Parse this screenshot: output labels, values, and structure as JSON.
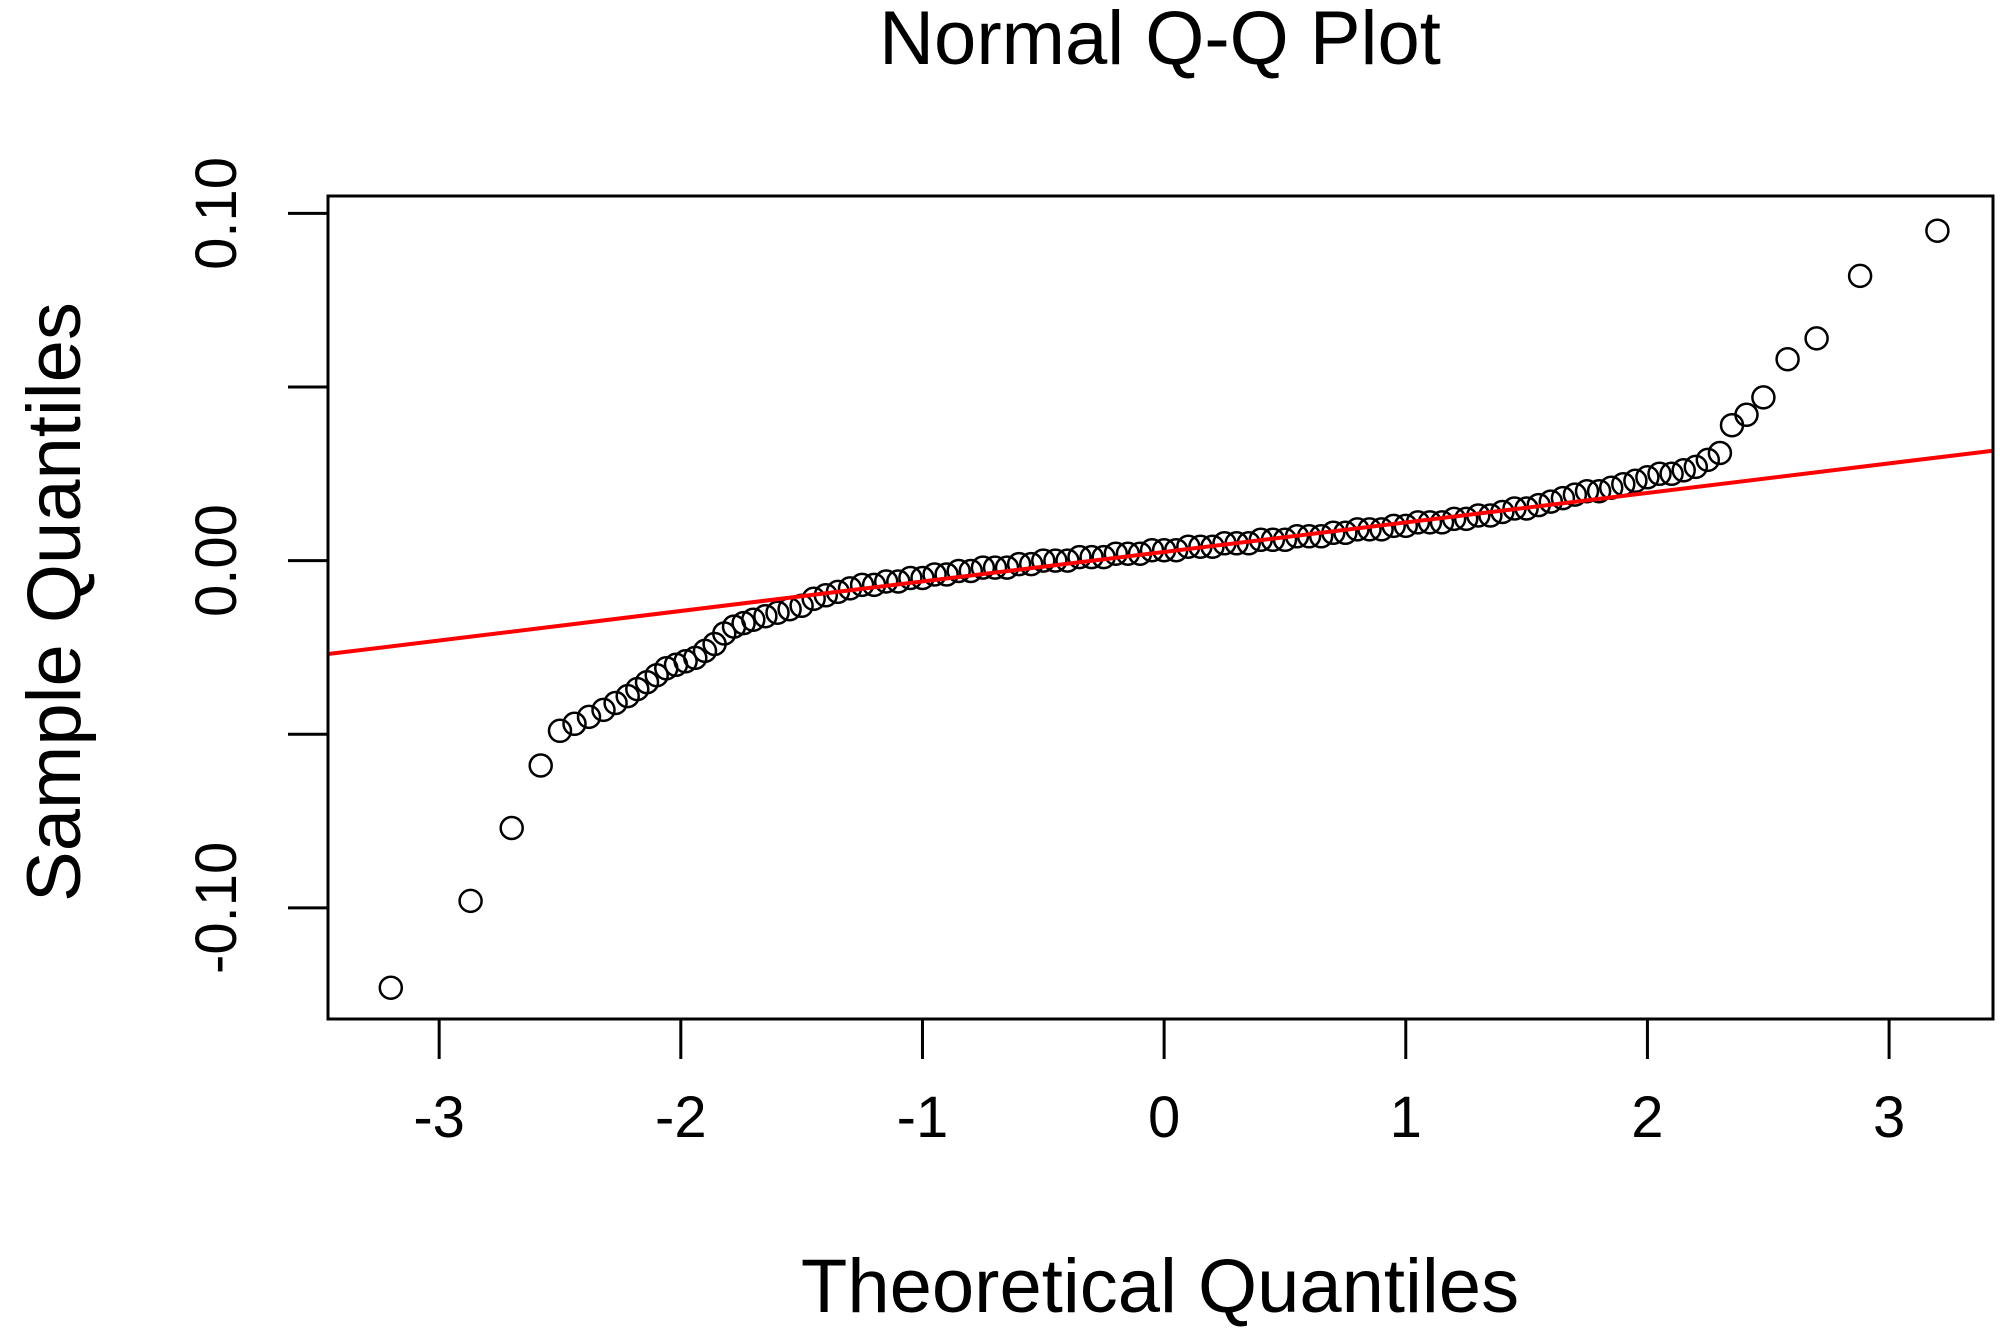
{
  "colors": {
    "points": "#000000",
    "reference_line": "#ff0000",
    "axes": "#000000",
    "background": "#ffffff"
  },
  "chart_data": {
    "type": "scatter",
    "title": "Normal Q-Q Plot",
    "xlabel": "Theoretical Quantiles",
    "ylabel": "Sample Quantiles",
    "xlim": [
      -3.46,
      3.43
    ],
    "ylim": [
      -0.132,
      0.105
    ],
    "x_ticks": [
      -3,
      -2,
      -1,
      0,
      1,
      2,
      3
    ],
    "x_tick_labels": [
      "-3",
      "-2",
      "-1",
      "0",
      "1",
      "2",
      "3"
    ],
    "y_ticks": [
      -0.1,
      -0.05,
      0,
      0.05,
      0.1
    ],
    "y_tick_labels": [
      "-0.10",
      "",
      "0.00",
      "",
      "0.10"
    ],
    "grid": false,
    "reference_line": {
      "name": "qq-line",
      "slope": 0.0085,
      "intercept": 0.0025
    },
    "series": [
      {
        "x": [
          -3.2,
          -2.87,
          -2.7,
          -2.58,
          -2.5,
          -2.44,
          -2.38,
          -2.32,
          -2.27,
          -2.22,
          -2.18,
          -2.14,
          -2.1,
          -2.06,
          -2.02,
          -1.98,
          -1.94,
          -1.9,
          -1.86,
          -1.82,
          -1.78,
          -1.74,
          -1.7,
          -1.65,
          -1.6,
          -1.55,
          -1.5,
          -1.45,
          -1.4,
          -1.35,
          -1.3,
          -1.25,
          -1.2,
          -1.15,
          -1.1,
          -1.05,
          -1.0,
          -0.95,
          -0.9,
          -0.85,
          -0.8,
          -0.75,
          -0.7,
          -0.65,
          -0.6,
          -0.55,
          -0.5,
          -0.45,
          -0.4,
          -0.35,
          -0.3,
          -0.25,
          -0.2,
          -0.15,
          -0.1,
          -0.05,
          0.0,
          0.05,
          0.1,
          0.15,
          0.2,
          0.25,
          0.3,
          0.35,
          0.4,
          0.45,
          0.5,
          0.55,
          0.6,
          0.65,
          0.7,
          0.75,
          0.8,
          0.85,
          0.9,
          0.95,
          1.0,
          1.05,
          1.1,
          1.15,
          1.2,
          1.25,
          1.3,
          1.35,
          1.4,
          1.45,
          1.5,
          1.55,
          1.6,
          1.65,
          1.7,
          1.75,
          1.8,
          1.85,
          1.9,
          1.95,
          2.0,
          2.05,
          2.1,
          2.15,
          2.2,
          2.25,
          2.3,
          2.35,
          2.41,
          2.48,
          2.58,
          2.7,
          2.88,
          3.2
        ],
        "y": [
          -0.123,
          -0.098,
          -0.077,
          -0.059,
          -0.049,
          -0.047,
          -0.045,
          -0.043,
          -0.041,
          -0.039,
          -0.037,
          -0.035,
          -0.033,
          -0.031,
          -0.03,
          -0.029,
          -0.028,
          -0.026,
          -0.024,
          -0.021,
          -0.019,
          -0.018,
          -0.017,
          -0.016,
          -0.015,
          -0.014,
          -0.013,
          -0.011,
          -0.01,
          -0.009,
          -0.008,
          -0.007,
          -0.007,
          -0.006,
          -0.006,
          -0.005,
          -0.005,
          -0.004,
          -0.004,
          -0.003,
          -0.003,
          -0.002,
          -0.002,
          -0.002,
          -0.001,
          -0.001,
          0.0,
          0.0,
          0.0,
          0.001,
          0.001,
          0.001,
          0.002,
          0.002,
          0.002,
          0.003,
          0.003,
          0.003,
          0.004,
          0.004,
          0.004,
          0.005,
          0.005,
          0.005,
          0.006,
          0.006,
          0.006,
          0.007,
          0.007,
          0.007,
          0.008,
          0.008,
          0.009,
          0.009,
          0.009,
          0.01,
          0.01,
          0.011,
          0.011,
          0.011,
          0.012,
          0.012,
          0.013,
          0.013,
          0.014,
          0.015,
          0.015,
          0.016,
          0.017,
          0.018,
          0.019,
          0.02,
          0.02,
          0.021,
          0.022,
          0.023,
          0.024,
          0.025,
          0.025,
          0.026,
          0.027,
          0.029,
          0.031,
          0.039,
          0.042,
          0.047,
          0.058,
          0.064,
          0.082,
          0.095
        ]
      }
    ]
  }
}
